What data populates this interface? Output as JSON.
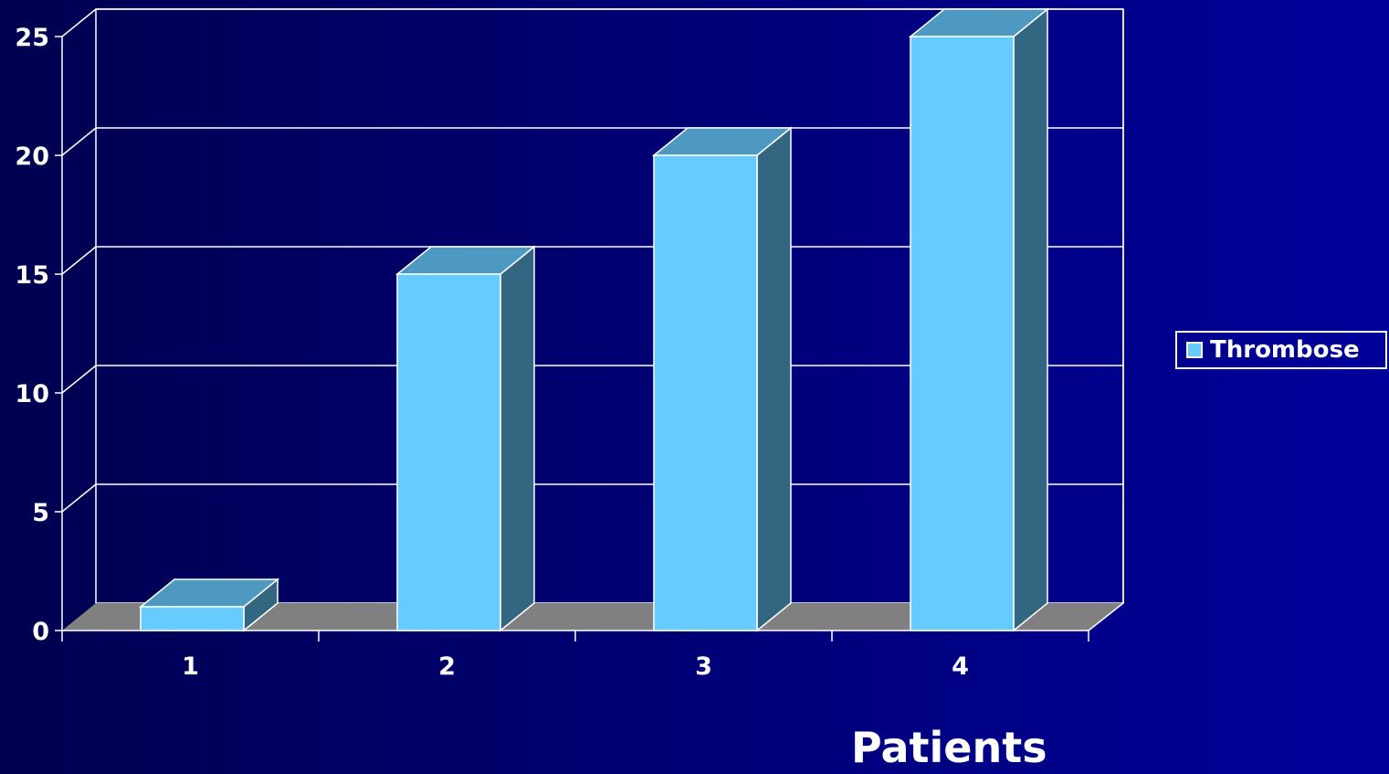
{
  "chart_data": {
    "type": "bar",
    "categories": [
      "1",
      "2",
      "3",
      "4"
    ],
    "series": [
      {
        "name": "Thrombose",
        "values": [
          1,
          15,
          20,
          25
        ]
      }
    ],
    "xlabel": "Patients",
    "ylabel": "",
    "ylim": [
      0,
      25
    ],
    "yticks": [
      "0",
      "5",
      "10",
      "15",
      "20",
      "25"
    ],
    "grid": true,
    "legend": "right",
    "colors": {
      "bar_front": "#66ccff",
      "bar_top": "#4d99c2",
      "bar_side": "#336680",
      "floor": "#808080",
      "grid": "#ffffff"
    }
  }
}
